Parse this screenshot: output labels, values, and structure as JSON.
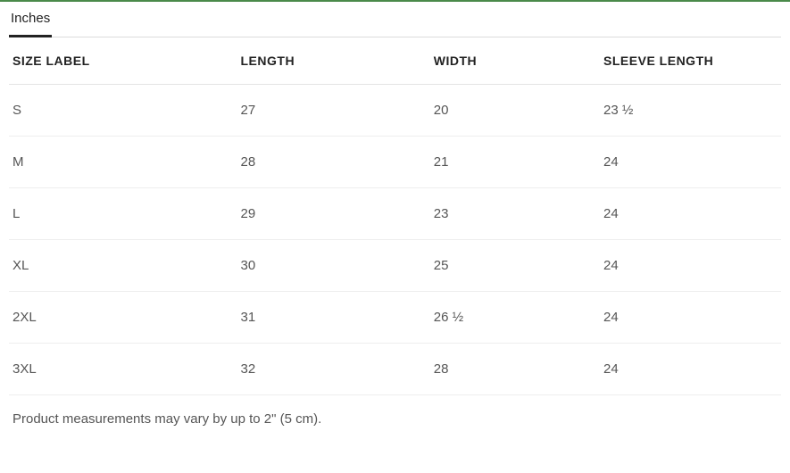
{
  "tab": {
    "label": "Inches"
  },
  "table": {
    "columns": [
      "SIZE LABEL",
      "LENGTH",
      "WIDTH",
      "SLEEVE LENGTH"
    ],
    "rows": [
      [
        "S",
        "27",
        "20",
        "23 ½"
      ],
      [
        "M",
        "28",
        "21",
        "24"
      ],
      [
        "L",
        "29",
        "23",
        "24"
      ],
      [
        "XL",
        "30",
        "25",
        "24"
      ],
      [
        "2XL",
        "31",
        "26 ½",
        "24"
      ],
      [
        "3XL",
        "32",
        "28",
        "24"
      ]
    ]
  },
  "footnote": "Product measurements may vary by up to 2\" (5 cm).",
  "styling": {
    "top_line_color": "#4a8a4a",
    "header_text_color": "#222222",
    "body_text_color": "#555555",
    "row_border_color": "#eeeeee",
    "header_border_color": "#e4e4e4",
    "tab_underline_color": "#222222",
    "background": "#ffffff",
    "header_fontsize": 14,
    "body_fontsize": 15
  }
}
